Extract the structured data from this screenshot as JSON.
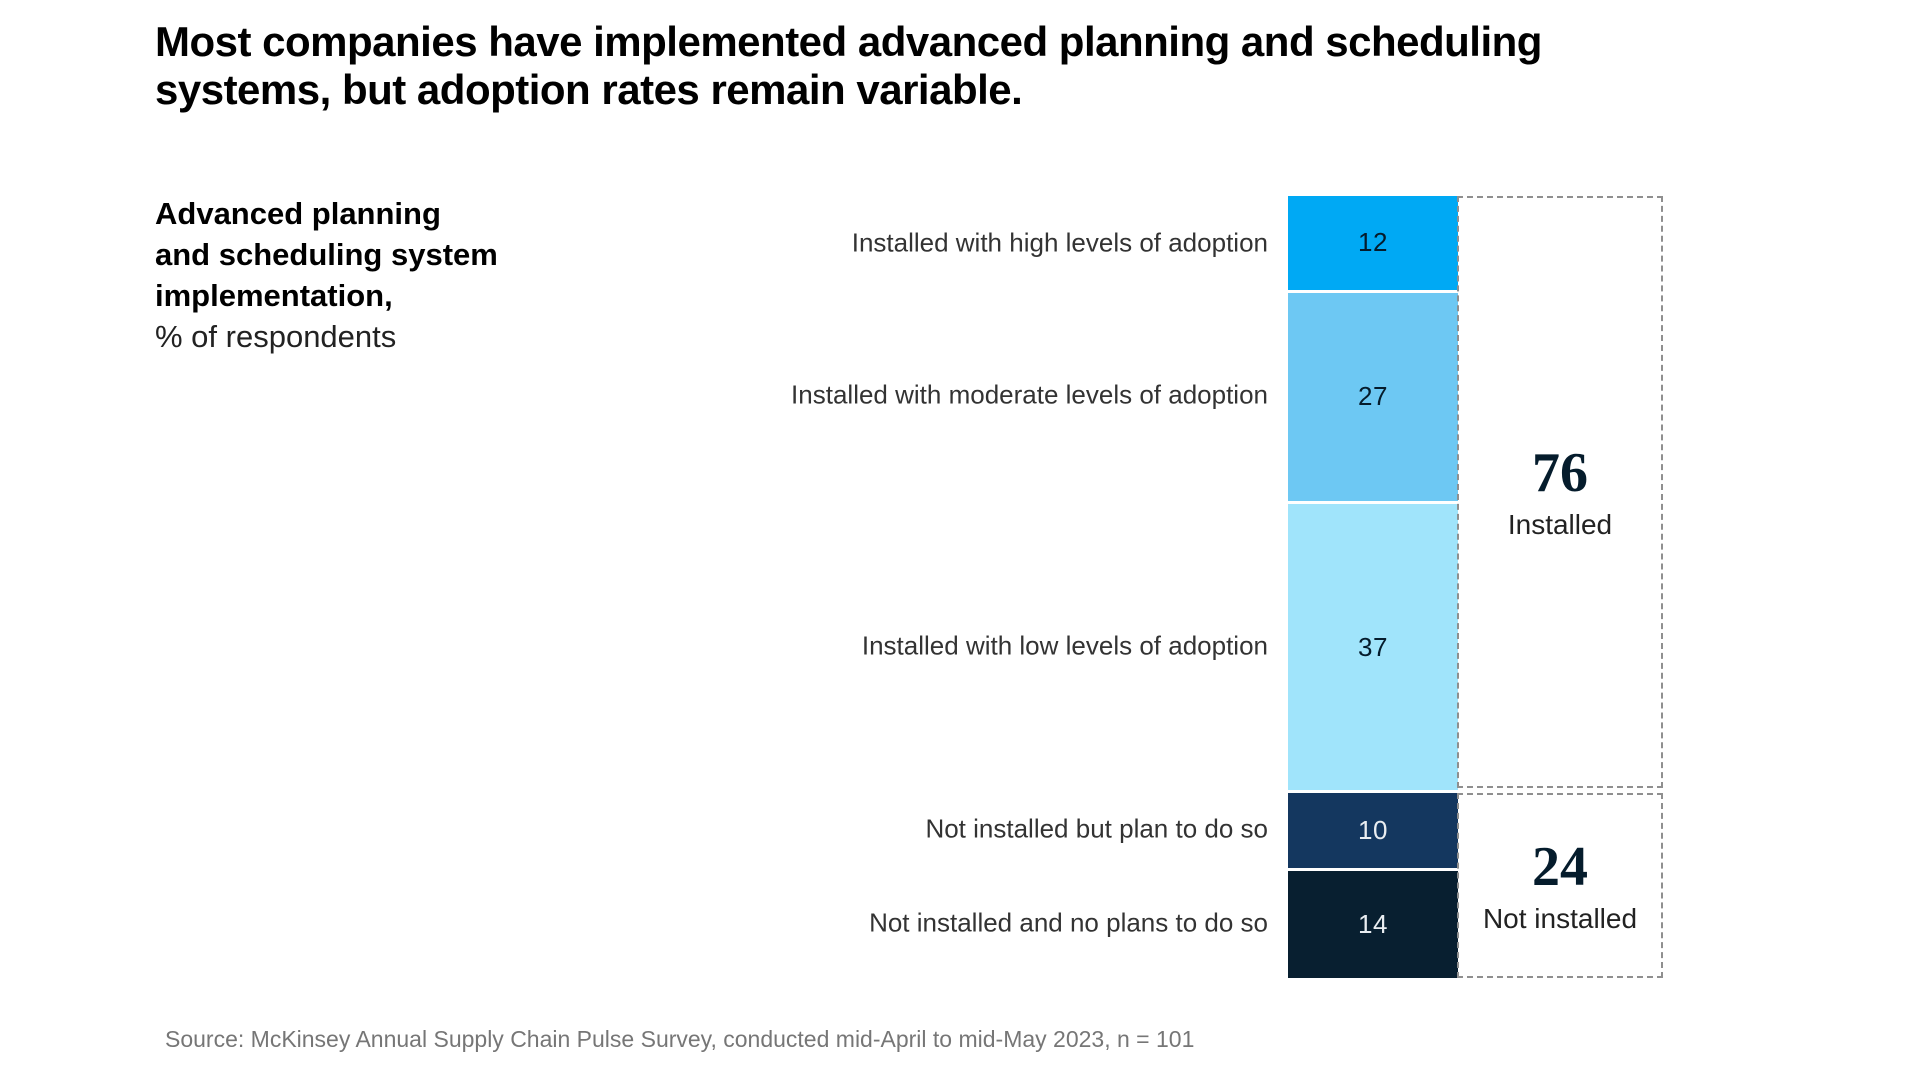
{
  "title": {
    "line1": "Most companies have implemented advanced planning and scheduling",
    "line2": "systems, but adoption rates remain variable."
  },
  "axis_label": {
    "bold_line1": "Advanced planning",
    "bold_line2": "and scheduling system",
    "bold_line3": "implementation,",
    "sub": "% of respondents"
  },
  "chart_data": {
    "type": "bar",
    "subtype": "single-stacked-column",
    "title": "Advanced planning and scheduling system implementation",
    "ylabel": "% of respondents",
    "total": 100,
    "categories": [
      "Installed with high levels of adoption",
      "Installed with moderate levels of adoption",
      "Installed with low levels of adoption",
      "Not installed but plan to do so",
      "Not installed and no plans to do so"
    ],
    "values": [
      12,
      27,
      37,
      10,
      14
    ],
    "segment_colors": [
      "#00A9F4",
      "#6DC8F3",
      "#A0E4FB",
      "#14375F",
      "#081F30"
    ],
    "value_text_colors": [
      "#051C2C",
      "#051C2C",
      "#051C2C",
      "#E9EDF1",
      "#E9EDF1"
    ],
    "box_border_color": "#8F8F8F",
    "groups": [
      {
        "value": "76",
        "label": "Installed"
      },
      {
        "value": "24",
        "label": "Not installed"
      }
    ],
    "legend": "none",
    "grid": "off"
  },
  "source": "Source: McKinsey Annual Supply Chain Pulse Survey, conducted mid-April to mid-May 2023, n = 101"
}
